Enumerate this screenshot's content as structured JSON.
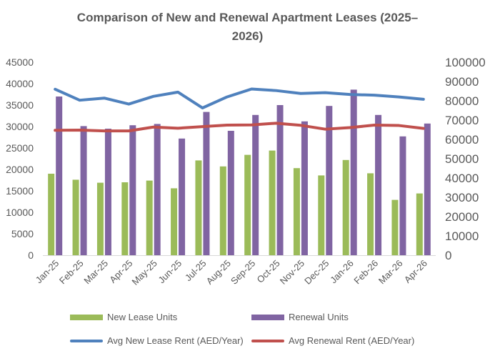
{
  "chart_data": {
    "type": "bar",
    "title_line1": "Comparison of New and Renewal Apartment Leases (2025–",
    "title_line2": "2026)",
    "categories": [
      "Jan-25",
      "Feb-25",
      "Mar-25",
      "Apr-25",
      "May-25",
      "Jun-25",
      "Jul-25",
      "Aug-25",
      "Sep-25",
      "Oct-25",
      "Nov-25",
      "Dec-25",
      "Jan-26",
      "Feb-26",
      "Mar-26",
      "Apr-26"
    ],
    "series": [
      {
        "name": "New Lease Units",
        "kind": "bar",
        "axis": "left",
        "color": "#9bbb59",
        "values": [
          19000,
          17600,
          16900,
          17000,
          17400,
          15600,
          22100,
          20700,
          23400,
          24400,
          20300,
          18600,
          22200,
          19100,
          12900,
          14400
        ]
      },
      {
        "name": "Renewal Units",
        "kind": "bar",
        "axis": "left",
        "color": "#8064a2",
        "values": [
          37000,
          30100,
          29500,
          30300,
          30600,
          27200,
          33400,
          29000,
          32700,
          35000,
          31200,
          34800,
          38600,
          32700,
          27700,
          30700
        ]
      },
      {
        "name": "Avg New Lease Rent (AED/Year)",
        "kind": "line",
        "axis": "right",
        "color": "#4f81bd",
        "values": [
          86000,
          80300,
          81400,
          78300,
          82300,
          84500,
          76300,
          82000,
          86100,
          85300,
          83800,
          84200,
          83300,
          82900,
          82000,
          80800
        ]
      },
      {
        "name": "Avg Renewal Rent (AED/Year)",
        "kind": "line",
        "axis": "right",
        "color": "#c0504d",
        "values": [
          64700,
          64800,
          64400,
          64400,
          66400,
          65800,
          66600,
          67400,
          67500,
          68400,
          67300,
          65300,
          66100,
          67400,
          67200,
          65700
        ]
      }
    ],
    "yleft": {
      "min": 0,
      "max": 45000,
      "step": 5000,
      "ticks": [
        "0",
        "5000",
        "10000",
        "15000",
        "20000",
        "25000",
        "30000",
        "35000",
        "40000",
        "45000"
      ]
    },
    "yright": {
      "min": 0,
      "max": 100000,
      "step": 10000,
      "ticks": [
        "0",
        "10000",
        "20000",
        "30000",
        "40000",
        "50000",
        "60000",
        "70000",
        "80000",
        "90000",
        "100000"
      ]
    },
    "grid": false,
    "legend_position": "bottom"
  }
}
